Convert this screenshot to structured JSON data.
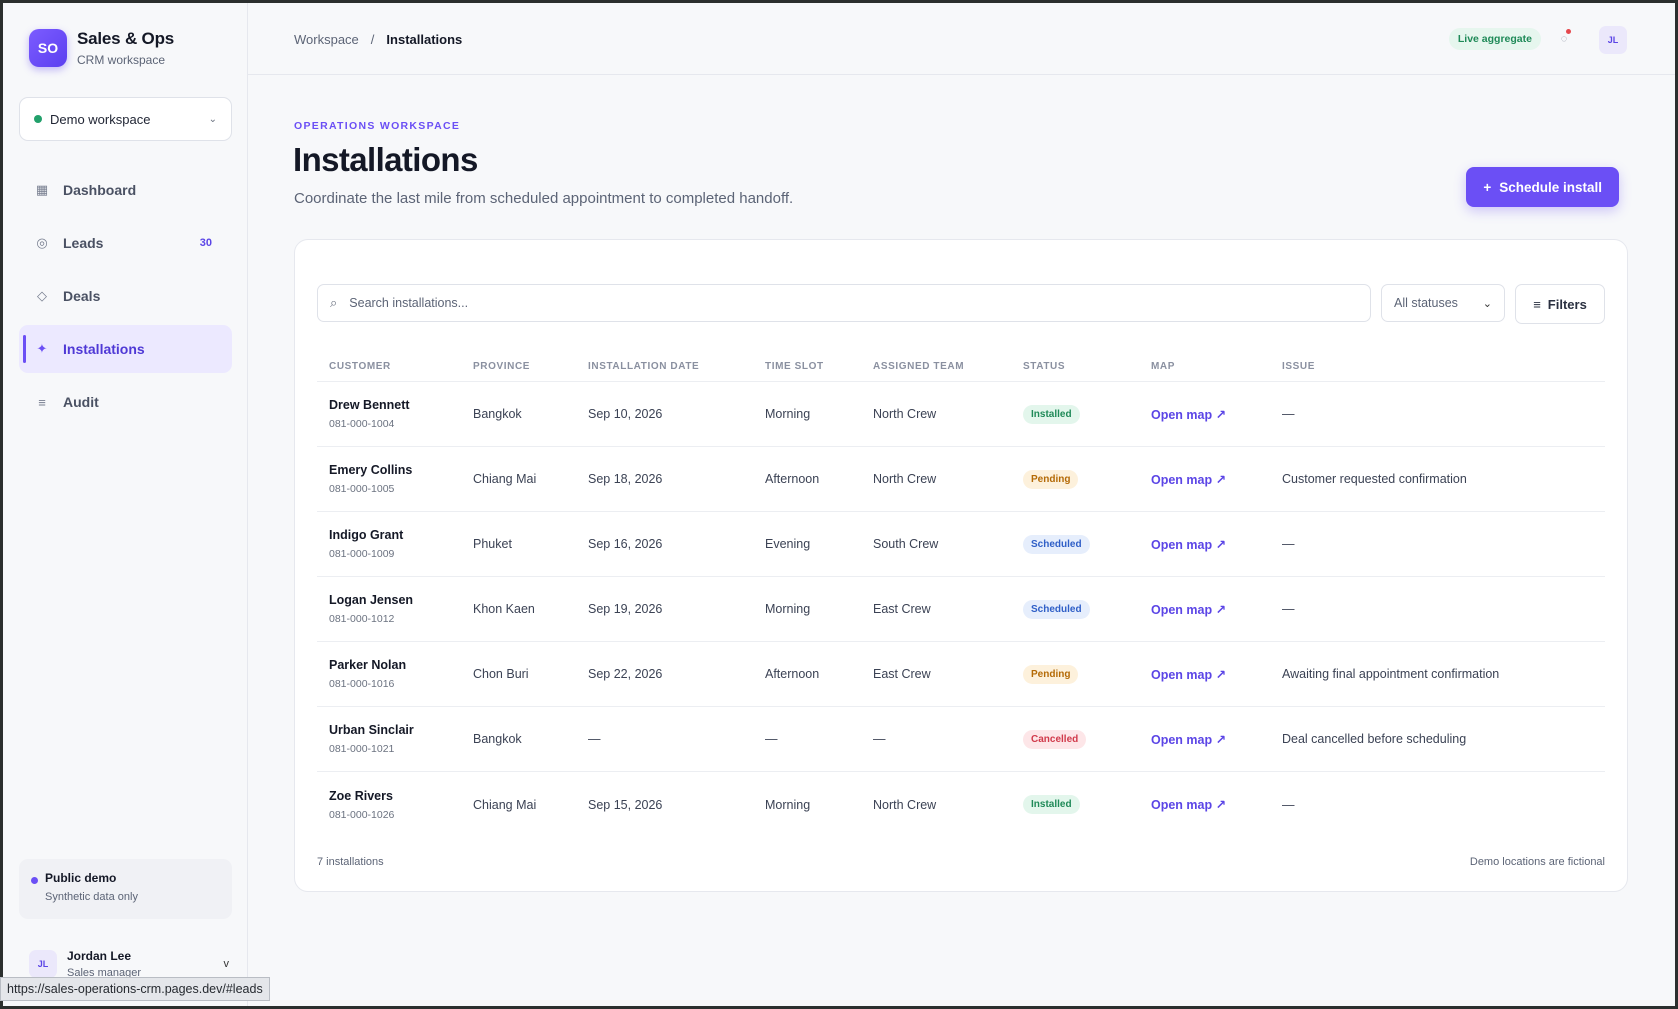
{
  "brand": {
    "logo": "SO",
    "title": "Sales & Ops",
    "subtitle": "CRM workspace"
  },
  "workspace_select": {
    "value": "Demo workspace",
    "status_color": "#22a06b"
  },
  "nav": [
    {
      "label": "Dashboard",
      "icon": "grid-icon",
      "glyph": "▦"
    },
    {
      "label": "Leads",
      "icon": "target-icon",
      "glyph": "◎",
      "badge": "30"
    },
    {
      "label": "Deals",
      "icon": "diamond-icon",
      "glyph": "◇"
    },
    {
      "label": "Installations",
      "icon": "sparkle-icon",
      "glyph": "✦",
      "active": true
    },
    {
      "label": "Audit",
      "icon": "list-icon",
      "glyph": "≡"
    }
  ],
  "demo_card": {
    "title": "Public demo",
    "subtitle": "Synthetic data only"
  },
  "user": {
    "initials": "JL",
    "name": "Jordan Lee",
    "role": "Sales manager"
  },
  "status_url": "https://sales-operations-crm.pages.dev/#leads",
  "topbar": {
    "breadcrumb_root": "Workspace",
    "breadcrumb_sep": "/",
    "breadcrumb_current": "Installations",
    "live_badge": "Live aggregate",
    "avatar": "JL"
  },
  "header": {
    "eyebrow": "OPERATIONS WORKSPACE",
    "title": "Installations",
    "subtitle": "Coordinate the last mile from scheduled appointment to completed handoff.",
    "primary_button": "Schedule install",
    "primary_button_icon": "+"
  },
  "toolbar": {
    "search_placeholder": "Search installations...",
    "status_filter": "All statuses",
    "filters_button": "Filters"
  },
  "table": {
    "columns": [
      "CUSTOMER",
      "PROVINCE",
      "INSTALLATION DATE",
      "TIME SLOT",
      "ASSIGNED TEAM",
      "STATUS",
      "MAP",
      "ISSUE"
    ],
    "rows": [
      {
        "name": "Drew Bennett",
        "phone": "081-000-1004",
        "province": "Bangkok",
        "date": "Sep 10, 2026",
        "slot": "Morning",
        "team": "North Crew",
        "status": "Installed",
        "status_kind": "installed",
        "map": "Open map ↗",
        "issue": "—"
      },
      {
        "name": "Emery Collins",
        "phone": "081-000-1005",
        "province": "Chiang Mai",
        "date": "Sep 18, 2026",
        "slot": "Afternoon",
        "team": "North Crew",
        "status": "Pending",
        "status_kind": "pending",
        "map": "Open map ↗",
        "issue": "Customer requested confirmation"
      },
      {
        "name": "Indigo Grant",
        "phone": "081-000-1009",
        "province": "Phuket",
        "date": "Sep 16, 2026",
        "slot": "Evening",
        "team": "South Crew",
        "status": "Scheduled",
        "status_kind": "scheduled",
        "map": "Open map ↗",
        "issue": "—"
      },
      {
        "name": "Logan Jensen",
        "phone": "081-000-1012",
        "province": "Khon Kaen",
        "date": "Sep 19, 2026",
        "slot": "Morning",
        "team": "East Crew",
        "status": "Scheduled",
        "status_kind": "scheduled",
        "map": "Open map ↗",
        "issue": "—"
      },
      {
        "name": "Parker Nolan",
        "phone": "081-000-1016",
        "province": "Chon Buri",
        "date": "Sep 22, 2026",
        "slot": "Afternoon",
        "team": "East Crew",
        "status": "Pending",
        "status_kind": "pending",
        "map": "Open map ↗",
        "issue": "Awaiting final appointment confirmation"
      },
      {
        "name": "Urban Sinclair",
        "phone": "081-000-1021",
        "province": "Bangkok",
        "date": "—",
        "slot": "—",
        "team": "—",
        "status": "Cancelled",
        "status_kind": "cancelled",
        "map": "Open map ↗",
        "issue": "Deal cancelled before scheduling"
      },
      {
        "name": "Zoe Rivers",
        "phone": "081-000-1026",
        "province": "Chiang Mai",
        "date": "Sep 15, 2026",
        "slot": "Morning",
        "team": "North Crew",
        "status": "Installed",
        "status_kind": "installed",
        "map": "Open map ↗",
        "issue": "—"
      }
    ]
  },
  "footer": {
    "count": "7 installations",
    "note": "Demo locations are fictional"
  },
  "colors": {
    "accent": "#6b4ff5",
    "installed": "#1f8a58",
    "pending": "#b46a06",
    "scheduled": "#2f5fc7",
    "cancelled": "#d13a4b"
  }
}
